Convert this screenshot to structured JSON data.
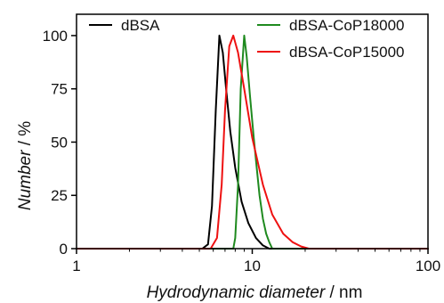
{
  "chart_data": {
    "type": "line",
    "title": "",
    "xlabel": "",
    "ylabel": "",
    "xlabel_parts": [
      {
        "text": "Hydrodynamic diameter",
        "italic": true
      },
      {
        "text": " / nm",
        "italic": false
      }
    ],
    "ylabel_parts": [
      {
        "text": "Number",
        "italic": true
      },
      {
        "text": " / %",
        "italic": false
      }
    ],
    "x_scale": "log",
    "xlim": [
      1,
      100
    ],
    "ylim": [
      0,
      110
    ],
    "x_ticks": [
      1,
      10,
      100
    ],
    "x_tick_labels": [
      "1",
      "10",
      "100"
    ],
    "y_ticks": [
      0,
      25,
      50,
      75,
      100
    ],
    "y_tick_labels": [
      "0",
      "25",
      "50",
      "75",
      "100"
    ],
    "grid": false,
    "legend_position": "top",
    "series": [
      {
        "name": "dBSA",
        "color": "#000000",
        "x": [
          1,
          5.2,
          5.6,
          5.9,
          6.2,
          6.5,
          6.8,
          7.1,
          7.5,
          8.0,
          8.7,
          9.5,
          10.5,
          11.5,
          12.5,
          100
        ],
        "y": [
          0,
          0,
          2,
          20,
          65,
          100,
          92,
          75,
          55,
          38,
          22,
          12,
          5,
          1.5,
          0,
          0
        ]
      },
      {
        "name": "dBSA-CoP18000",
        "color": "#1f8a1f",
        "x": [
          1,
          7.8,
          8.0,
          8.3,
          8.6,
          9.0,
          9.3,
          9.7,
          10.2,
          10.6,
          11.0,
          11.5,
          12.0,
          12.5,
          13.0,
          100
        ],
        "y": [
          0,
          0,
          5,
          30,
          75,
          100,
          90,
          72,
          52,
          38,
          25,
          14,
          7,
          3,
          0,
          0
        ]
      },
      {
        "name": "dBSA-CoP15000",
        "color": "#ee1111",
        "x": [
          1,
          5.8,
          6.3,
          6.7,
          7.0,
          7.4,
          7.8,
          8.3,
          9.0,
          10.0,
          11.5,
          13.0,
          15.0,
          17.0,
          19.0,
          21.0,
          100
        ],
        "y": [
          0,
          0,
          5,
          30,
          65,
          95,
          100,
          92,
          75,
          52,
          30,
          16,
          7,
          3,
          1,
          0,
          0
        ]
      }
    ]
  }
}
